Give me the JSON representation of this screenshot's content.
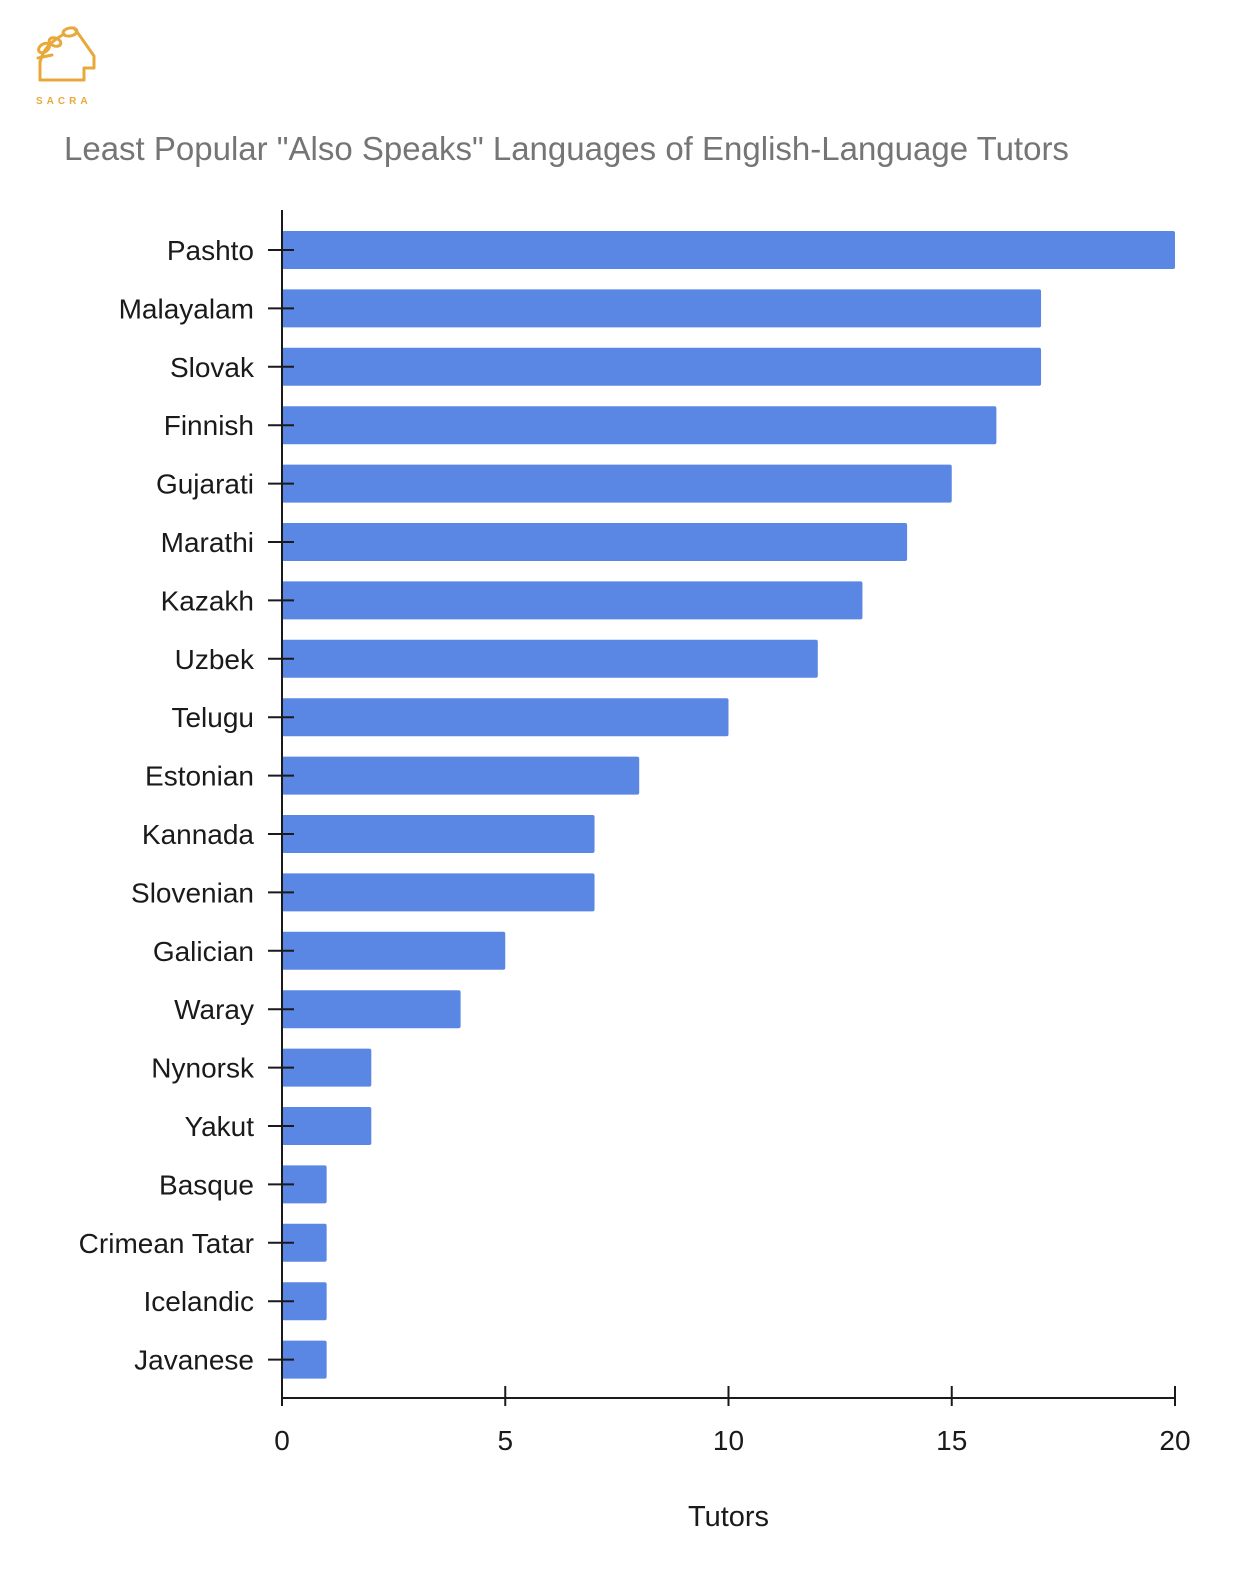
{
  "brand": {
    "name": "SACRA",
    "color": "#e8a93a"
  },
  "chart_data": {
    "type": "bar",
    "orientation": "horizontal",
    "title": "Least Popular \"Also Speaks\" Languages of English-Language Tutors",
    "xlabel": "Tutors",
    "ylabel": "",
    "categories": [
      "Pashto",
      "Malayalam",
      "Slovak",
      "Finnish",
      "Gujarati",
      "Marathi",
      "Kazakh",
      "Uzbek",
      "Telugu",
      "Estonian",
      "Kannada",
      "Slovenian",
      "Galician",
      "Waray",
      "Nynorsk",
      "Yakut",
      "Basque",
      "Crimean Tatar",
      "Icelandic",
      "Javanese"
    ],
    "values": [
      20,
      17,
      17,
      16,
      15,
      14,
      13,
      12,
      10,
      8,
      7,
      7,
      5,
      4,
      2,
      2,
      1,
      1,
      1,
      1
    ],
    "xlim": [
      0,
      20
    ],
    "xticks": [
      "0",
      "5",
      "10",
      "15",
      "20"
    ],
    "bar_color": "#5b87e4",
    "grid": false,
    "legend": "none"
  }
}
